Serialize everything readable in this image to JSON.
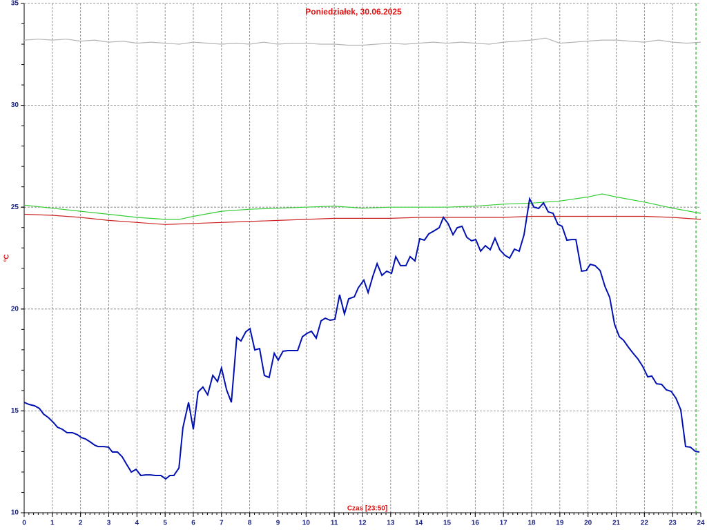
{
  "chart_data": {
    "type": "line",
    "title": "Poniedziałek, 30.06.2025",
    "y_label": "°C",
    "x_label": "Czas [23:50]",
    "xlim": [
      0,
      24
    ],
    "xticks": [
      0,
      1,
      2,
      3,
      4,
      5,
      6,
      7,
      8,
      9,
      10,
      11,
      12,
      13,
      14,
      15,
      16,
      17,
      18,
      19,
      20,
      21,
      22,
      23,
      24
    ],
    "ylim": [
      10,
      35
    ],
    "yticks": [
      10,
      15,
      20,
      25,
      30,
      35
    ],
    "grid": true,
    "now_x": 23.83,
    "now_color": "#00a000",
    "series": [
      {
        "color": "#b4b4b4",
        "x": [
          0,
          0.5,
          1,
          1.5,
          2,
          2.5,
          3,
          3.5,
          4,
          4.5,
          5,
          5.5,
          6,
          6.5,
          7,
          7.5,
          8,
          8.5,
          9,
          9.5,
          10,
          10.5,
          11,
          11.5,
          12,
          12.5,
          13,
          13.5,
          14,
          14.5,
          15,
          15.5,
          16,
          16.5,
          17,
          17.5,
          18,
          18.5,
          19,
          19.5,
          20,
          20.5,
          21,
          21.5,
          22,
          22.5,
          23,
          23.5,
          24
        ],
        "values": [
          33.2,
          33.25,
          33.2,
          33.25,
          33.15,
          33.2,
          33.1,
          33.15,
          33.05,
          33.1,
          33.05,
          33.0,
          33.1,
          33.05,
          33.0,
          33.05,
          33.0,
          33.1,
          33.0,
          33.05,
          33.05,
          33.0,
          33.0,
          32.95,
          32.95,
          33.0,
          33.05,
          33.0,
          33.05,
          33.1,
          33.05,
          33.1,
          33.05,
          33.0,
          33.1,
          33.15,
          33.2,
          33.3,
          33.05,
          33.1,
          33.15,
          33.2,
          33.2,
          33.15,
          33.1,
          33.2,
          33.1,
          33.05,
          33.1
        ]
      },
      {
        "color": "#33cc33",
        "x": [
          0,
          1,
          2,
          3,
          4,
          5,
          5.5,
          6,
          7,
          8,
          9,
          10,
          11,
          12,
          13,
          14,
          15,
          16,
          17,
          18,
          19,
          20,
          20.5,
          21,
          22,
          23,
          24
        ],
        "values": [
          25.1,
          24.95,
          24.8,
          24.65,
          24.5,
          24.4,
          24.4,
          24.55,
          24.8,
          24.9,
          24.95,
          25.0,
          25.05,
          24.95,
          25.0,
          25.0,
          25.0,
          25.05,
          25.15,
          25.2,
          25.3,
          25.5,
          25.65,
          25.5,
          25.25,
          24.95,
          24.7
        ]
      },
      {
        "color": "#cc2222",
        "x": [
          0,
          1,
          2,
          3,
          4,
          5,
          6,
          7,
          8,
          9,
          10,
          11,
          12,
          13,
          14,
          15,
          16,
          17,
          18,
          19,
          20,
          21,
          22,
          23,
          24
        ],
        "values": [
          24.65,
          24.6,
          24.5,
          24.35,
          24.25,
          24.15,
          24.2,
          24.25,
          24.3,
          24.35,
          24.4,
          24.45,
          24.45,
          24.45,
          24.5,
          24.5,
          24.5,
          24.5,
          24.55,
          24.55,
          24.55,
          24.55,
          24.55,
          24.5,
          24.4
        ]
      },
      {
        "color": "#0010b0",
        "x": [
          0,
          0.17,
          0.37,
          0.54,
          0.69,
          0.86,
          1.03,
          1.18,
          1.35,
          1.52,
          1.71,
          1.89,
          2.03,
          2.18,
          2.33,
          2.5,
          2.62,
          2.82,
          2.99,
          3.13,
          3.31,
          3.48,
          3.62,
          3.8,
          3.97,
          4.14,
          4.31,
          4.48,
          4.65,
          4.85,
          5.02,
          5.17,
          5.31,
          5.49,
          5.63,
          5.83,
          6.0,
          6.17,
          6.34,
          6.51,
          6.69,
          6.86,
          7.0,
          7.18,
          7.35,
          7.54,
          7.69,
          7.86,
          8.01,
          8.18,
          8.35,
          8.52,
          8.69,
          8.87,
          9.01,
          9.18,
          9.36,
          9.53,
          9.7,
          9.87,
          10.04,
          10.19,
          10.36,
          10.53,
          10.68,
          10.85,
          11.02,
          11.19,
          11.36,
          11.51,
          11.71,
          11.85,
          12.05,
          12.2,
          12.37,
          12.52,
          12.69,
          12.86,
          13.03,
          13.18,
          13.35,
          13.54,
          13.69,
          13.86,
          14.03,
          14.2,
          14.35,
          14.52,
          14.72,
          14.87,
          15.04,
          15.21,
          15.36,
          15.53,
          15.7,
          15.87,
          16.02,
          16.19,
          16.36,
          16.53,
          16.7,
          16.87,
          17.05,
          17.22,
          17.39,
          17.56,
          17.73,
          17.93,
          18.08,
          18.25,
          18.42,
          18.59,
          18.76,
          18.93,
          19.08,
          19.25,
          19.42,
          19.57,
          19.77,
          19.94,
          20.08,
          20.25,
          20.43,
          20.6,
          20.77,
          20.94,
          21.11,
          21.26,
          21.43,
          21.6,
          21.77,
          21.94,
          22.12,
          22.26,
          22.43,
          22.61,
          22.78,
          22.95,
          23.12,
          23.29,
          23.46,
          23.63,
          23.81,
          23.95
        ],
        "values": [
          15.42,
          15.32,
          15.25,
          15.12,
          14.84,
          14.67,
          14.44,
          14.2,
          14.1,
          13.93,
          13.93,
          13.83,
          13.69,
          13.62,
          13.49,
          13.32,
          13.25,
          13.25,
          13.22,
          12.98,
          12.98,
          12.74,
          12.41,
          12.0,
          12.13,
          11.83,
          11.86,
          11.86,
          11.83,
          11.83,
          11.66,
          11.83,
          11.83,
          12.2,
          14.17,
          15.42,
          14.1,
          15.93,
          16.17,
          15.79,
          16.74,
          16.44,
          17.11,
          16.03,
          15.42,
          18.6,
          18.43,
          18.88,
          19.04,
          17.99,
          18.06,
          16.74,
          16.64,
          17.83,
          17.49,
          17.93,
          17.96,
          17.96,
          17.96,
          18.64,
          18.81,
          18.91,
          18.57,
          19.42,
          19.55,
          19.45,
          19.49,
          20.7,
          19.76,
          20.5,
          20.6,
          21.04,
          21.42,
          20.81,
          21.62,
          22.23,
          21.65,
          21.86,
          21.75,
          22.57,
          22.13,
          22.13,
          22.57,
          22.36,
          23.45,
          23.38,
          23.69,
          23.82,
          23.99,
          24.5,
          24.19,
          23.65,
          23.99,
          24.06,
          23.52,
          23.35,
          23.41,
          22.84,
          23.11,
          22.91,
          23.48,
          22.91,
          22.64,
          22.5,
          22.94,
          22.84,
          23.65,
          25.41,
          25.0,
          24.94,
          25.21,
          24.77,
          24.7,
          24.16,
          24.06,
          23.38,
          23.41,
          23.41,
          21.86,
          21.89,
          22.2,
          22.13,
          21.89,
          21.11,
          20.57,
          19.25,
          18.64,
          18.47,
          18.13,
          17.83,
          17.55,
          17.18,
          16.67,
          16.71,
          16.33,
          16.3,
          16.03,
          15.96,
          15.62,
          15.05,
          13.25,
          13.22,
          13.01,
          12.98
        ]
      }
    ]
  }
}
